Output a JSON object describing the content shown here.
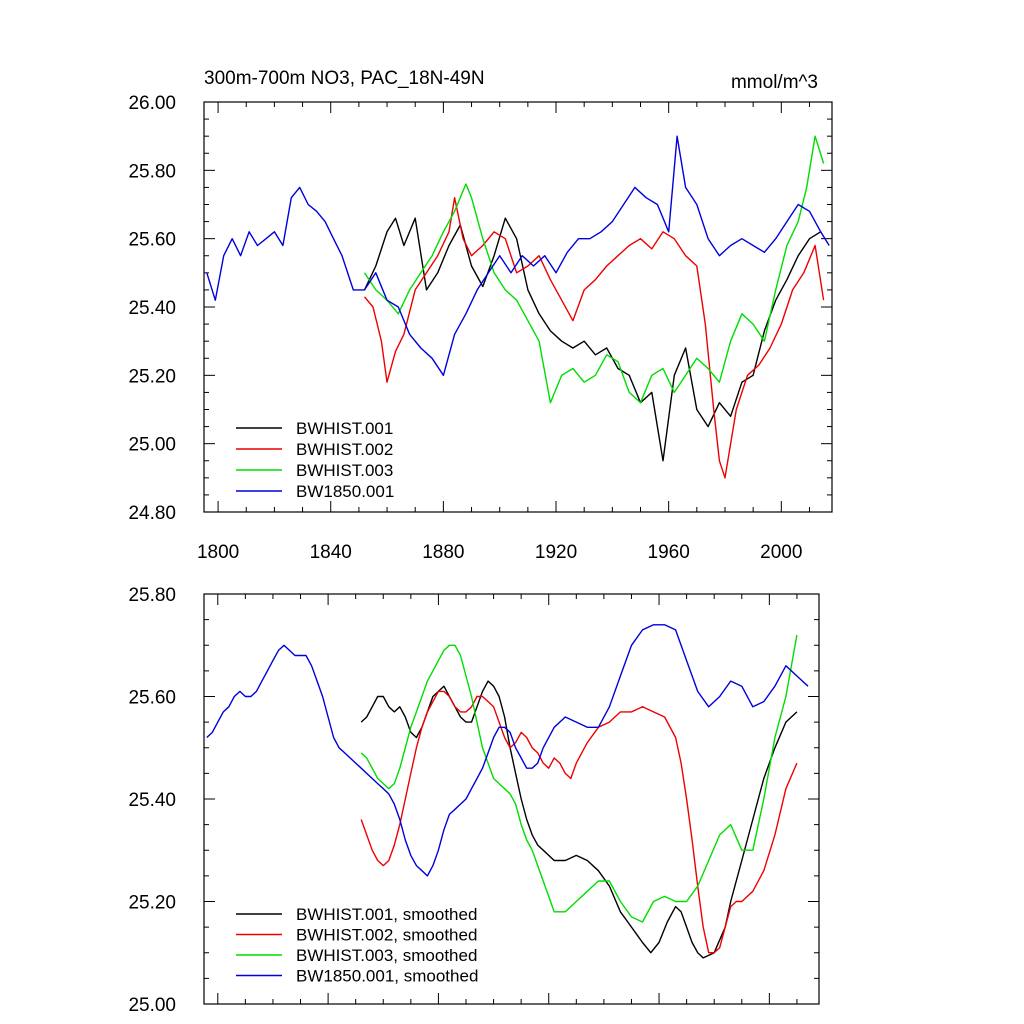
{
  "chart_data": [
    {
      "type": "line",
      "title": "300m-700m NO3, PAC_18N-49N",
      "units": "mmol/m^3",
      "xlim": [
        1795,
        2018
      ],
      "ylim": [
        24.8,
        26.0
      ],
      "xticks": [
        1800,
        1840,
        1880,
        1920,
        1960,
        2000
      ],
      "xtick_labels": [
        "1800",
        "1840",
        "1880",
        "1920",
        "1960",
        "2000"
      ],
      "yticks": [
        24.8,
        25.0,
        25.2,
        25.4,
        25.6,
        25.8,
        26.0
      ],
      "ytick_labels": [
        "24.80",
        "25.00",
        "25.20",
        "25.40",
        "25.60",
        "25.80",
        "26.00"
      ],
      "legend_position": "bottom-left",
      "series": [
        {
          "name": "BWHIST.001",
          "color": "#000000",
          "x": [
            1852,
            1856,
            1860,
            1863,
            1866,
            1870,
            1874,
            1878,
            1882,
            1886,
            1890,
            1894,
            1898,
            1902,
            1906,
            1910,
            1914,
            1918,
            1922,
            1926,
            1930,
            1934,
            1938,
            1942,
            1946,
            1950,
            1954,
            1958,
            1962,
            1966,
            1970,
            1974,
            1978,
            1982,
            1986,
            1990,
            1994,
            1998,
            2002,
            2006,
            2010,
            2014
          ],
          "y": [
            25.45,
            25.52,
            25.62,
            25.66,
            25.58,
            25.66,
            25.45,
            25.5,
            25.58,
            25.64,
            25.52,
            25.46,
            25.55,
            25.66,
            25.6,
            25.45,
            25.38,
            25.33,
            25.3,
            25.28,
            25.3,
            25.26,
            25.28,
            25.22,
            25.2,
            25.12,
            25.15,
            24.95,
            25.2,
            25.28,
            25.1,
            25.05,
            25.12,
            25.08,
            25.18,
            25.2,
            25.33,
            25.42,
            25.48,
            25.55,
            25.6,
            25.62
          ]
        },
        {
          "name": "BWHIST.002",
          "color": "#ee0000",
          "x": [
            1852,
            1855,
            1858,
            1860,
            1863,
            1866,
            1870,
            1874,
            1878,
            1882,
            1884,
            1887,
            1890,
            1894,
            1898,
            1902,
            1906,
            1910,
            1914,
            1918,
            1922,
            1926,
            1930,
            1934,
            1938,
            1942,
            1946,
            1950,
            1954,
            1958,
            1962,
            1966,
            1970,
            1973,
            1976,
            1978,
            1980,
            1984,
            1988,
            1992,
            1996,
            2000,
            2004,
            2008,
            2012,
            2015
          ],
          "y": [
            25.43,
            25.4,
            25.3,
            25.18,
            25.27,
            25.32,
            25.45,
            25.5,
            25.55,
            25.62,
            25.72,
            25.6,
            25.55,
            25.58,
            25.62,
            25.6,
            25.5,
            25.52,
            25.55,
            25.48,
            25.42,
            25.36,
            25.45,
            25.48,
            25.52,
            25.55,
            25.58,
            25.6,
            25.57,
            25.62,
            25.6,
            25.55,
            25.52,
            25.35,
            25.1,
            24.95,
            24.9,
            25.1,
            25.2,
            25.23,
            25.28,
            25.35,
            25.45,
            25.5,
            25.58,
            25.42
          ]
        },
        {
          "name": "BWHIST.003",
          "color": "#00dd00",
          "x": [
            1852,
            1856,
            1860,
            1864,
            1868,
            1872,
            1876,
            1880,
            1884,
            1888,
            1890,
            1894,
            1898,
            1902,
            1906,
            1910,
            1914,
            1918,
            1922,
            1926,
            1930,
            1934,
            1938,
            1942,
            1946,
            1950,
            1954,
            1958,
            1962,
            1966,
            1970,
            1974,
            1978,
            1982,
            1986,
            1990,
            1994,
            1998,
            2002,
            2006,
            2009,
            2012,
            2015
          ],
          "y": [
            25.5,
            25.45,
            25.42,
            25.38,
            25.45,
            25.5,
            25.55,
            25.62,
            25.68,
            25.76,
            25.72,
            25.6,
            25.5,
            25.45,
            25.42,
            25.36,
            25.3,
            25.12,
            25.2,
            25.22,
            25.18,
            25.2,
            25.26,
            25.24,
            25.15,
            25.12,
            25.2,
            25.22,
            25.15,
            25.2,
            25.25,
            25.22,
            25.18,
            25.3,
            25.38,
            25.35,
            25.3,
            25.45,
            25.58,
            25.65,
            25.75,
            25.9,
            25.82
          ]
        },
        {
          "name": "BW1850.001",
          "color": "#0000dd",
          "x": [
            1796,
            1799,
            1802,
            1805,
            1808,
            1811,
            1814,
            1817,
            1820,
            1823,
            1826,
            1829,
            1832,
            1835,
            1838,
            1841,
            1844,
            1848,
            1852,
            1856,
            1860,
            1864,
            1868,
            1872,
            1876,
            1880,
            1884,
            1888,
            1892,
            1896,
            1900,
            1904,
            1908,
            1912,
            1916,
            1920,
            1924,
            1928,
            1932,
            1936,
            1940,
            1944,
            1948,
            1952,
            1956,
            1960,
            1963,
            1966,
            1970,
            1974,
            1978,
            1982,
            1986,
            1990,
            1994,
            1998,
            2002,
            2006,
            2010,
            2014,
            2017
          ],
          "y": [
            25.5,
            25.42,
            25.55,
            25.6,
            25.55,
            25.62,
            25.58,
            25.6,
            25.62,
            25.58,
            25.72,
            25.75,
            25.7,
            25.68,
            25.65,
            25.6,
            25.55,
            25.45,
            25.45,
            25.5,
            25.42,
            25.4,
            25.32,
            25.28,
            25.25,
            25.2,
            25.32,
            25.38,
            25.45,
            25.5,
            25.55,
            25.5,
            25.55,
            25.52,
            25.55,
            25.5,
            25.56,
            25.6,
            25.6,
            25.62,
            25.65,
            25.7,
            25.75,
            25.72,
            25.7,
            25.62,
            25.9,
            25.75,
            25.7,
            25.6,
            25.55,
            25.58,
            25.6,
            25.58,
            25.56,
            25.6,
            25.65,
            25.7,
            25.68,
            25.62,
            25.58
          ]
        }
      ]
    },
    {
      "type": "line",
      "title": "",
      "xlim": [
        1795,
        2018
      ],
      "ylim": [
        25.0,
        25.8
      ],
      "xticks": [
        1800,
        1840,
        1880,
        1920,
        1960,
        2000
      ],
      "xtick_labels": [],
      "yticks": [
        25.0,
        25.2,
        25.4,
        25.6,
        25.8
      ],
      "ytick_labels": [
        "25.00",
        "25.20",
        "25.40",
        "25.60",
        "25.80"
      ],
      "legend_position": "bottom-left",
      "series": [
        {
          "name": "BWHIST.001, smoothed",
          "color": "#000000",
          "x": [
            1852,
            1854,
            1856,
            1858,
            1860,
            1862,
            1864,
            1866,
            1868,
            1870,
            1872,
            1874,
            1876,
            1878,
            1880,
            1882,
            1884,
            1886,
            1888,
            1890,
            1892,
            1894,
            1896,
            1898,
            1900,
            1902,
            1904,
            1906,
            1908,
            1910,
            1912,
            1914,
            1916,
            1918,
            1922,
            1926,
            1930,
            1934,
            1938,
            1942,
            1946,
            1950,
            1954,
            1957,
            1960,
            1963,
            1966,
            1968,
            1970,
            1972,
            1974,
            1976,
            1980,
            1984,
            1986,
            1990,
            1994,
            1998,
            2002,
            2006,
            2010
          ],
          "y": [
            25.55,
            25.56,
            25.58,
            25.6,
            25.6,
            25.58,
            25.57,
            25.58,
            25.56,
            25.53,
            25.52,
            25.54,
            25.57,
            25.6,
            25.61,
            25.62,
            25.6,
            25.58,
            25.56,
            25.55,
            25.55,
            25.58,
            25.61,
            25.63,
            25.62,
            25.6,
            25.56,
            25.5,
            25.45,
            25.4,
            25.36,
            25.33,
            25.31,
            25.3,
            25.28,
            25.28,
            25.29,
            25.28,
            25.26,
            25.23,
            25.18,
            25.15,
            25.12,
            25.1,
            25.12,
            25.16,
            25.19,
            25.18,
            25.15,
            25.12,
            25.1,
            25.09,
            25.1,
            25.15,
            25.2,
            25.28,
            25.36,
            25.44,
            25.5,
            25.55,
            25.57
          ]
        },
        {
          "name": "BWHIST.002, smoothed",
          "color": "#ee0000",
          "x": [
            1852,
            1854,
            1856,
            1858,
            1860,
            1862,
            1864,
            1866,
            1868,
            1870,
            1872,
            1874,
            1876,
            1878,
            1880,
            1882,
            1884,
            1886,
            1888,
            1890,
            1892,
            1894,
            1896,
            1898,
            1900,
            1902,
            1904,
            1906,
            1908,
            1910,
            1912,
            1914,
            1916,
            1918,
            1920,
            1922,
            1924,
            1926,
            1928,
            1930,
            1934,
            1938,
            1942,
            1946,
            1950,
            1954,
            1958,
            1962,
            1966,
            1968,
            1970,
            1972,
            1974,
            1976,
            1978,
            1980,
            1982,
            1984,
            1986,
            1988,
            1990,
            1994,
            1998,
            2002,
            2006,
            2010
          ],
          "y": [
            25.36,
            25.33,
            25.3,
            25.28,
            25.27,
            25.28,
            25.31,
            25.35,
            25.4,
            25.45,
            25.5,
            25.54,
            25.57,
            25.59,
            25.61,
            25.61,
            25.6,
            25.58,
            25.57,
            25.57,
            25.58,
            25.6,
            25.6,
            25.59,
            25.58,
            25.55,
            25.52,
            25.5,
            25.51,
            25.53,
            25.52,
            25.5,
            25.49,
            25.47,
            25.46,
            25.48,
            25.47,
            25.45,
            25.44,
            25.47,
            25.51,
            25.54,
            25.55,
            25.57,
            25.57,
            25.58,
            25.57,
            25.56,
            25.52,
            25.47,
            25.4,
            25.32,
            25.23,
            25.15,
            25.1,
            25.1,
            25.11,
            25.15,
            25.19,
            25.2,
            25.2,
            25.22,
            25.26,
            25.33,
            25.42,
            25.47
          ]
        },
        {
          "name": "BWHIST.003, smoothed",
          "color": "#00dd00",
          "x": [
            1852,
            1854,
            1856,
            1858,
            1860,
            1862,
            1864,
            1866,
            1868,
            1870,
            1872,
            1874,
            1876,
            1878,
            1880,
            1882,
            1884,
            1886,
            1888,
            1890,
            1892,
            1894,
            1896,
            1898,
            1900,
            1902,
            1904,
            1906,
            1908,
            1910,
            1912,
            1914,
            1916,
            1918,
            1920,
            1922,
            1926,
            1930,
            1934,
            1938,
            1942,
            1946,
            1950,
            1954,
            1958,
            1962,
            1966,
            1970,
            1974,
            1978,
            1982,
            1986,
            1990,
            1994,
            1998,
            2002,
            2006,
            2010
          ],
          "y": [
            25.49,
            25.48,
            25.46,
            25.44,
            25.43,
            25.42,
            25.43,
            25.46,
            25.5,
            25.54,
            25.57,
            25.6,
            25.63,
            25.65,
            25.67,
            25.69,
            25.7,
            25.7,
            25.68,
            25.64,
            25.6,
            25.55,
            25.5,
            25.47,
            25.44,
            25.43,
            25.42,
            25.41,
            25.39,
            25.35,
            25.32,
            25.3,
            25.27,
            25.24,
            25.21,
            25.18,
            25.18,
            25.2,
            25.22,
            25.24,
            25.24,
            25.2,
            25.17,
            25.16,
            25.2,
            25.21,
            25.2,
            25.2,
            25.23,
            25.28,
            25.33,
            25.35,
            25.3,
            25.3,
            25.4,
            25.52,
            25.6,
            25.72
          ]
        },
        {
          "name": "BW1850.001, smoothed",
          "color": "#0000dd",
          "x": [
            1796,
            1798,
            1800,
            1802,
            1804,
            1806,
            1808,
            1810,
            1812,
            1814,
            1816,
            1818,
            1820,
            1822,
            1824,
            1826,
            1828,
            1830,
            1832,
            1834,
            1836,
            1838,
            1840,
            1842,
            1844,
            1846,
            1848,
            1850,
            1852,
            1854,
            1856,
            1858,
            1860,
            1862,
            1864,
            1866,
            1868,
            1870,
            1872,
            1874,
            1876,
            1878,
            1880,
            1882,
            1884,
            1886,
            1888,
            1890,
            1892,
            1894,
            1896,
            1898,
            1900,
            1902,
            1904,
            1906,
            1908,
            1910,
            1912,
            1914,
            1916,
            1918,
            1922,
            1926,
            1930,
            1934,
            1938,
            1942,
            1946,
            1950,
            1954,
            1958,
            1962,
            1966,
            1970,
            1974,
            1978,
            1982,
            1986,
            1990,
            1994,
            1998,
            2002,
            2006,
            2010,
            2014
          ],
          "y": [
            25.52,
            25.53,
            25.55,
            25.57,
            25.58,
            25.6,
            25.61,
            25.6,
            25.6,
            25.61,
            25.63,
            25.65,
            25.67,
            25.69,
            25.7,
            25.69,
            25.68,
            25.68,
            25.68,
            25.66,
            25.63,
            25.6,
            25.56,
            25.52,
            25.5,
            25.49,
            25.48,
            25.47,
            25.46,
            25.45,
            25.44,
            25.43,
            25.42,
            25.41,
            25.39,
            25.36,
            25.32,
            25.29,
            25.27,
            25.26,
            25.25,
            25.27,
            25.3,
            25.34,
            25.37,
            25.38,
            25.39,
            25.4,
            25.42,
            25.44,
            25.46,
            25.49,
            25.52,
            25.54,
            25.54,
            25.53,
            25.5,
            25.48,
            25.46,
            25.46,
            25.47,
            25.5,
            25.54,
            25.56,
            25.55,
            25.54,
            25.54,
            25.58,
            25.64,
            25.7,
            25.73,
            25.74,
            25.74,
            25.73,
            25.67,
            25.61,
            25.58,
            25.6,
            25.63,
            25.62,
            25.58,
            25.59,
            25.62,
            25.66,
            25.64,
            25.62
          ]
        }
      ]
    }
  ]
}
